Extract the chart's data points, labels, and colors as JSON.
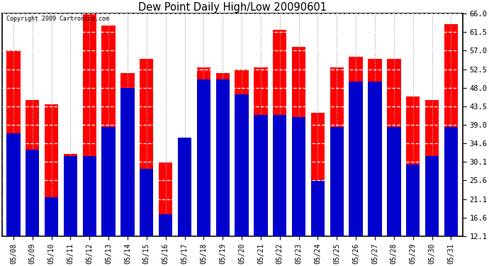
{
  "title": "Dew Point Daily High/Low 20090601",
  "copyright": "Copyright 2009 Cartronics.com",
  "dates": [
    "05/08",
    "05/09",
    "05/10",
    "05/11",
    "05/12",
    "05/13",
    "05/14",
    "05/15",
    "05/16",
    "05/17",
    "05/18",
    "05/19",
    "05/20",
    "05/21",
    "05/22",
    "05/23",
    "05/24",
    "05/25",
    "05/26",
    "05/27",
    "05/28",
    "05/29",
    "05/30",
    "05/31"
  ],
  "highs": [
    57.0,
    45.0,
    44.0,
    32.0,
    66.0,
    63.0,
    51.5,
    55.0,
    30.0,
    35.0,
    53.0,
    51.5,
    52.5,
    53.0,
    62.0,
    58.0,
    42.0,
    53.0,
    55.5,
    55.0,
    55.0,
    46.0,
    45.0,
    63.5
  ],
  "lows": [
    37.0,
    33.0,
    21.5,
    31.5,
    31.5,
    38.5,
    48.0,
    28.5,
    17.5,
    36.0,
    50.0,
    50.0,
    46.5,
    41.5,
    41.5,
    41.0,
    25.5,
    38.5,
    49.5,
    49.5,
    38.5,
    29.5,
    31.5,
    38.5
  ],
  "high_color": "#ff0000",
  "low_color": "#0000cc",
  "bg_color": "#ffffff",
  "yticks": [
    12.1,
    16.6,
    21.1,
    25.6,
    30.1,
    34.6,
    39.0,
    43.5,
    48.0,
    52.5,
    57.0,
    61.5,
    66.0
  ],
  "ymin": 12.1,
  "ymax": 66.0
}
